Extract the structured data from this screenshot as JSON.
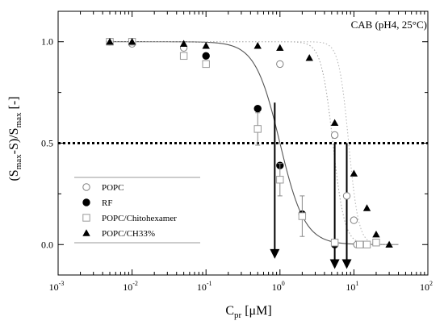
{
  "chart_data": {
    "type": "scatter",
    "title": "",
    "annotation": "CAB (pH4, 25°C)",
    "xlabel": "C",
    "xlabel_sub": "pr",
    "xlabel_unit": "[μM]",
    "ylabel": "(S",
    "ylabel_sub1": "max",
    "ylabel_mid": "-S)/S",
    "ylabel_sub2": "max",
    "ylabel_unit": "[-]",
    "x_scale": "log",
    "xlim": [
      0.001,
      100
    ],
    "ylim": [
      -0.15,
      1.15
    ],
    "x_ticks": [
      {
        "value": 0.001,
        "base": "10",
        "exp": "-3"
      },
      {
        "value": 0.01,
        "base": "10",
        "exp": "-2"
      },
      {
        "value": 0.1,
        "base": "10",
        "exp": "-1"
      },
      {
        "value": 1,
        "base": "10",
        "exp": "0"
      },
      {
        "value": 10,
        "base": "10",
        "exp": "1"
      },
      {
        "value": 100,
        "base": "10",
        "exp": "2"
      }
    ],
    "y_ticks": [
      {
        "value": 0.0,
        "label": "0.0"
      },
      {
        "value": 0.5,
        "label": "0.5"
      },
      {
        "value": 1.0,
        "label": "1.0"
      }
    ],
    "threshold": 0.5,
    "legend_position": "lower-left",
    "series": [
      {
        "name": "POPC",
        "marker": "open-circle",
        "color": "#808080",
        "points": [
          {
            "x": 0.005,
            "y": 1.0
          },
          {
            "x": 0.01,
            "y": 0.99
          },
          {
            "x": 0.05,
            "y": 0.97
          },
          {
            "x": 1.0,
            "y": 0.89
          },
          {
            "x": 5.5,
            "y": 0.54
          },
          {
            "x": 8.0,
            "y": 0.24
          },
          {
            "x": 10.0,
            "y": 0.12
          },
          {
            "x": 11.0,
            "y": 0.0
          },
          {
            "x": 13.0,
            "y": 0.0
          }
        ]
      },
      {
        "name": "RF",
        "marker": "filled-circle",
        "color": "#000000",
        "points": [
          {
            "x": 0.005,
            "y": 1.0
          },
          {
            "x": 0.1,
            "y": 0.93
          },
          {
            "x": 0.5,
            "y": 0.67
          },
          {
            "x": 1.0,
            "y": 0.39
          },
          {
            "x": 2.0,
            "y": 0.15
          },
          {
            "x": 5.5,
            "y": 0.0
          }
        ]
      },
      {
        "name": "POPC/Chitohexamer",
        "marker": "open-square",
        "color": "#999999",
        "points": [
          {
            "x": 0.005,
            "y": 1.0,
            "err": 0.02
          },
          {
            "x": 0.01,
            "y": 1.0,
            "err": 0.02
          },
          {
            "x": 0.05,
            "y": 0.93,
            "err": 0.03
          },
          {
            "x": 0.1,
            "y": 0.89,
            "err": 0.03
          },
          {
            "x": 0.5,
            "y": 0.57,
            "err": 0.08
          },
          {
            "x": 1.0,
            "y": 0.32,
            "err": 0.08
          },
          {
            "x": 2.0,
            "y": 0.14,
            "err": 0.1
          },
          {
            "x": 5.5,
            "y": 0.01,
            "err": 0.02
          },
          {
            "x": 12.0,
            "y": 0.0,
            "err": 0.01
          },
          {
            "x": 15.0,
            "y": 0.0,
            "err": 0.01
          },
          {
            "x": 20.0,
            "y": 0.01,
            "err": 0.01
          }
        ]
      },
      {
        "name": "POPC/CH33%",
        "marker": "filled-triangle",
        "color": "#000000",
        "points": [
          {
            "x": 0.005,
            "y": 1.0
          },
          {
            "x": 0.01,
            "y": 1.0
          },
          {
            "x": 0.05,
            "y": 0.99
          },
          {
            "x": 0.1,
            "y": 0.98
          },
          {
            "x": 0.5,
            "y": 0.98
          },
          {
            "x": 1.0,
            "y": 0.97
          },
          {
            "x": 2.5,
            "y": 0.92
          },
          {
            "x": 5.5,
            "y": 0.6
          },
          {
            "x": 10.0,
            "y": 0.35
          },
          {
            "x": 15.0,
            "y": 0.18
          },
          {
            "x": 20.0,
            "y": 0.05
          },
          {
            "x": 30.0,
            "y": 0.0
          }
        ]
      }
    ],
    "fits": [
      {
        "name": "RF fit",
        "style": "solid",
        "color": "#555555",
        "x0": 1.0,
        "p": 2.6
      },
      {
        "name": "POPC fit",
        "style": "dotted",
        "color": "#aaaaaa",
        "x0": 5.2,
        "p": 5.5
      },
      {
        "name": "POPC/CH33% fit",
        "style": "dotted",
        "color": "#bbbbbb",
        "x0": 8.5,
        "p": 6.5
      }
    ],
    "arrows": [
      {
        "x": 0.85,
        "y_from": 0.7,
        "y_to": -0.07
      },
      {
        "x": 5.5,
        "y_from": 0.5,
        "y_to": -0.12
      },
      {
        "x": 8.0,
        "y_from": 0.5,
        "y_to": -0.12
      }
    ]
  }
}
